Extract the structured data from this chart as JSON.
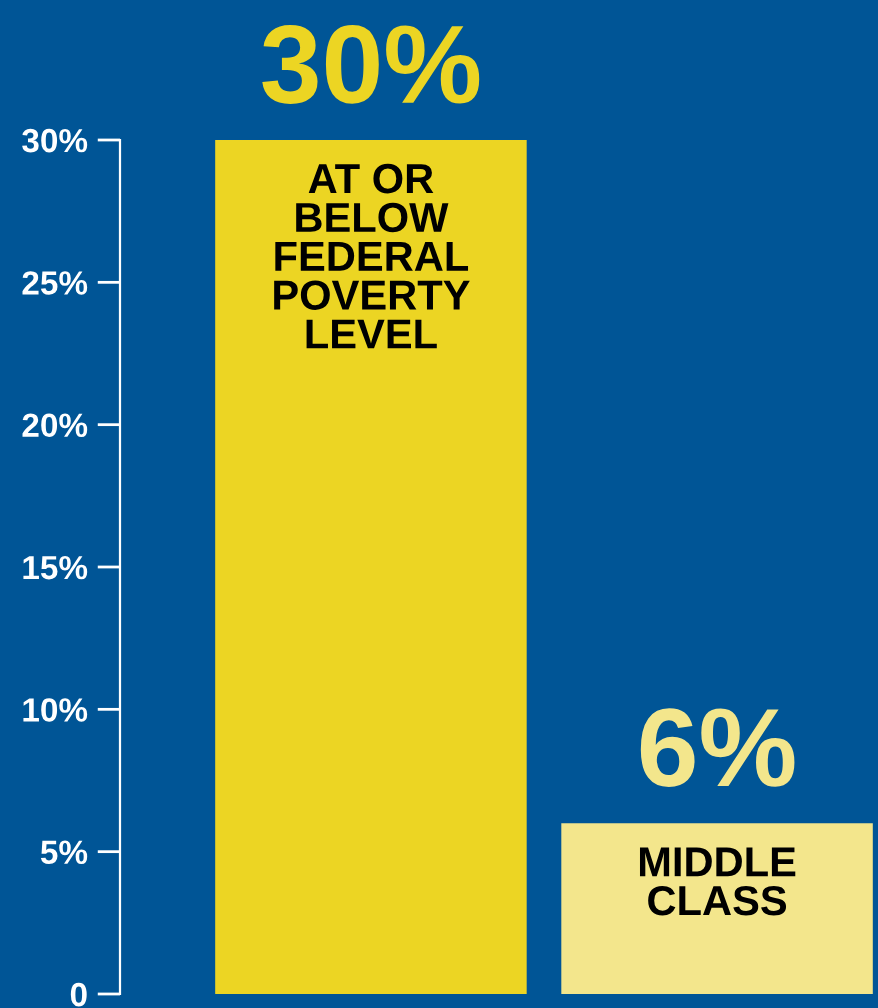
{
  "chart_data": {
    "type": "bar",
    "categories": [
      "AT OR\nBELOW\nFEDERAL\nPOVERTY\nLEVEL",
      "MIDDLE\nCLASS"
    ],
    "values": [
      30,
      6
    ],
    "colors": [
      "#ecd523",
      "#f3e68c"
    ],
    "value_labels": [
      "30%",
      "6%"
    ],
    "ylim": [
      0,
      30
    ],
    "yticks": [
      0,
      {
        "value": 5,
        "label": "5%"
      },
      {
        "value": 10,
        "label": "10%"
      },
      {
        "value": 15,
        "label": "15%"
      },
      {
        "value": 20,
        "label": "20%"
      },
      {
        "value": 25,
        "label": "25%"
      },
      {
        "value": 30,
        "label": "30%"
      }
    ],
    "grid": false,
    "legend": false
  }
}
